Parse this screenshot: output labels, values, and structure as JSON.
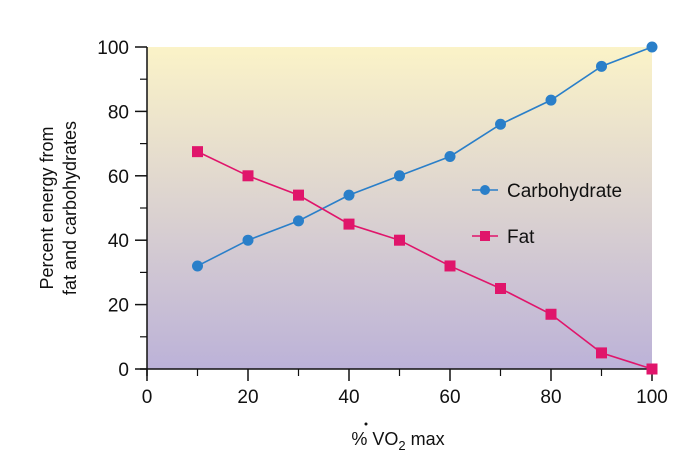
{
  "chart_data": {
    "type": "line",
    "title": "",
    "xlabel": "% VO2 max",
    "xlabel_parts": {
      "prefix": "% ",
      "main": "V",
      "dot": "˙",
      "after": "O",
      "sub": "2",
      "suffix": " max"
    },
    "ylabel": [
      "Percent energy from",
      "fat and carbohydrates"
    ],
    "xlim": [
      0,
      100
    ],
    "ylim": [
      0,
      100
    ],
    "x_ticks": [
      0,
      20,
      40,
      60,
      80,
      100
    ],
    "x_tick_labels": [
      "0",
      "20",
      "40",
      "60",
      "80",
      "100"
    ],
    "x_minor_ticks": [
      10,
      30,
      50,
      70,
      90
    ],
    "y_ticks": [
      0,
      20,
      40,
      60,
      80,
      100
    ],
    "y_tick_labels": [
      "0",
      "20",
      "40",
      "60",
      "80",
      "100"
    ],
    "y_minor_ticks": [
      10,
      30,
      50,
      70,
      90
    ],
    "grid": false,
    "legend_position": "center-right",
    "x": [
      10,
      20,
      30,
      40,
      50,
      60,
      70,
      80,
      90,
      100
    ],
    "series": [
      {
        "name": "Carbohydrate",
        "marker": "circle",
        "color": "#2a7fc9",
        "values": [
          32,
          40,
          46,
          54,
          60,
          66,
          76,
          83.5,
          94,
          100
        ]
      },
      {
        "name": "Fat",
        "marker": "square",
        "color": "#e0156b",
        "values": [
          67.5,
          60,
          54,
          45,
          40,
          32,
          25,
          17,
          5,
          0
        ]
      }
    ],
    "background_gradient": {
      "top": "#fbf3c8",
      "bottom": "#bcb2d8"
    }
  }
}
